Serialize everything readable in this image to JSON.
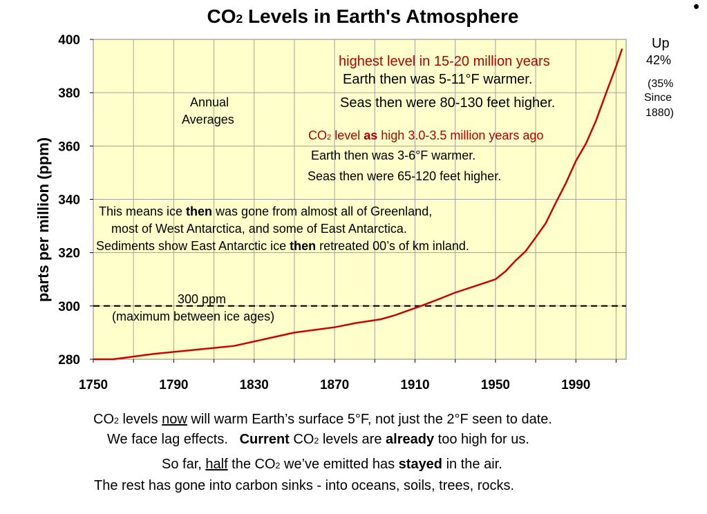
{
  "title": {
    "prefix": "CO",
    "sub": "2",
    "rest": " Levels in Earth's Atmosphere"
  },
  "side_note": {
    "up": "Up",
    "pct": "42%",
    "since1": "(35%",
    "since2": "Since",
    "since3": "1880)"
  },
  "annotations": {
    "annual1": "Annual",
    "annual2": "Averages",
    "highest": "highest level in 15-20 million years",
    "warmer1": "Earth then was 5-11°F warmer.",
    "seas1": "Seas then were 80-130 feet higher.",
    "co2_level_a": "CO",
    "co2_level_sub": "2",
    "co2_level_b": " level ",
    "co2_level_bold": "as",
    "co2_level_c": " high 3.0-3.5 million years ago",
    "warmer2": "Earth then was 3-6°F warmer.",
    "seas2": "Seas then were 65-120 feet higher.",
    "ice1_a": "This means ice ",
    "ice1_bold": "then",
    "ice1_b": " was gone from almost all of Greenland,",
    "ice2": "most of West Antarctica, and  some of East Antarctica.",
    "ice3_a": "Sediments show East Antarctic ice ",
    "ice3_bold": "then",
    "ice3_b": " retreated 00’s of km inland.",
    "ppm300": "300 ppm",
    "max_ice": "(maximum between ice ages)"
  },
  "bottom_text": {
    "l1_a": "CO",
    "l1_sub": "2",
    "l1_b": " levels ",
    "l1_u": "now",
    "l1_c": " will warm Earth’s surface 5°F, not just the 2°F seen to date.",
    "l2_a": "We face lag effects.   ",
    "l2_bold1": "Current",
    "l2_b": " CO",
    "l2_sub": "2",
    "l2_c": " levels are ",
    "l2_bold2": "already",
    "l2_d": " too high for us.",
    "l3_a": "So far, ",
    "l3_u": "half",
    "l3_b": " the CO",
    "l3_sub": "2",
    "l3_c": " we’ve emitted has ",
    "l3_bold": "stayed",
    "l3_d": " in the air.",
    "l4": "The rest has gone into carbon sinks - into oceans, soils, trees, rocks."
  },
  "colors": {
    "plot_bg": "#ffffcc",
    "line": "#cc0000",
    "annotation_red": "#b40000"
  },
  "chart_data": {
    "type": "line",
    "title": "CO2 Levels in Earth's Atmosphere",
    "xlabel": "",
    "ylabel": "parts per million (ppm)",
    "xlim": [
      1750,
      2015
    ],
    "ylim": [
      280,
      400
    ],
    "x_ticks": [
      "1750",
      "1790",
      "1830",
      "1870",
      "1910",
      "1950",
      "1990"
    ],
    "y_ticks": [
      "280",
      "300",
      "320",
      "340",
      "360",
      "380",
      "400"
    ],
    "grid": true,
    "reference_line": {
      "y": 300,
      "style": "dashed"
    },
    "series": [
      {
        "x": [
          1750,
          1760,
          1780,
          1800,
          1820,
          1850,
          1870,
          1880,
          1893,
          1900,
          1913,
          1920,
          1930,
          1940,
          1950,
          1955,
          1960,
          1965,
          1970,
          1975,
          1980,
          1985,
          1990,
          1995,
          2000,
          2005,
          2010,
          2013
        ],
        "y": [
          280,
          280,
          282,
          283.5,
          285,
          290,
          292,
          293.5,
          295,
          296.5,
          300,
          302,
          305,
          307.5,
          310,
          313,
          317,
          320.5,
          325.7,
          331,
          338.7,
          346,
          354.4,
          360.9,
          369.5,
          379.8,
          389.9,
          396.5
        ]
      }
    ]
  }
}
